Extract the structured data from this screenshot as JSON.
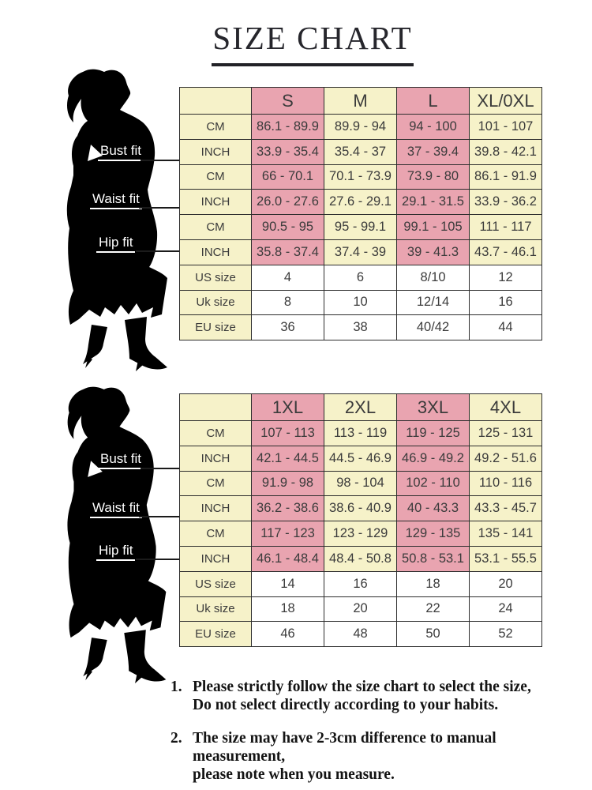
{
  "title": "SIZE CHART",
  "figures": {
    "bust_label": "Bust fit",
    "waist_label": "Waist fit",
    "hip_label": "Hip fit"
  },
  "colors": {
    "pink": "#e9a4b0",
    "cream": "#f6f2c9",
    "white": "#ffffff",
    "border": "#2d2d2d",
    "silhouette": "#000000"
  },
  "chart_data": [
    {
      "type": "table",
      "title": "Regular sizes (S - XL/0XL)",
      "columns": [
        "S",
        "M",
        "L",
        "XL/0XL"
      ],
      "rows": [
        {
          "label": "CM",
          "group": "bust",
          "fill": "size",
          "values": [
            "86.1 - 89.9",
            "89.9 - 94",
            "94 - 100",
            "101 - 107"
          ]
        },
        {
          "label": "INCH",
          "group": "bust",
          "fill": "size",
          "values": [
            "33.9 - 35.4",
            "35.4 - 37",
            "37 - 39.4",
            "39.8 - 42.1"
          ]
        },
        {
          "label": "CM",
          "group": "waist",
          "fill": "size",
          "values": [
            "66 - 70.1",
            "70.1 - 73.9",
            "73.9 - 80",
            "86.1 - 91.9"
          ]
        },
        {
          "label": "INCH",
          "group": "waist",
          "fill": "size",
          "values": [
            "26.0 - 27.6",
            "27.6 - 29.1",
            "29.1 - 31.5",
            "33.9 - 36.2"
          ]
        },
        {
          "label": "CM",
          "group": "hip",
          "fill": "size",
          "values": [
            "90.5 - 95",
            "95 - 99.1",
            "99.1 - 105",
            "111 - 117"
          ]
        },
        {
          "label": "INCH",
          "group": "hip",
          "fill": "size",
          "values": [
            "35.8 - 37.4",
            "37.4 - 39",
            "39 - 41.3",
            "43.7 - 46.1"
          ]
        },
        {
          "label": "US size",
          "group": "size",
          "fill": "white",
          "values": [
            "4",
            "6",
            "8/10",
            "12"
          ]
        },
        {
          "label": "Uk size",
          "group": "size",
          "fill": "white",
          "values": [
            "8",
            "10",
            "12/14",
            "16"
          ]
        },
        {
          "label": "EU size",
          "group": "size",
          "fill": "white",
          "values": [
            "36",
            "38",
            "40/42",
            "44"
          ]
        }
      ]
    },
    {
      "type": "table",
      "title": "Plus sizes (1XL - 4XL)",
      "columns": [
        "1XL",
        "2XL",
        "3XL",
        "4XL"
      ],
      "rows": [
        {
          "label": "CM",
          "group": "bust",
          "fill": "size",
          "values": [
            "107 - 113",
            "113 - 119",
            "119 - 125",
            "125 - 131"
          ]
        },
        {
          "label": "INCH",
          "group": "bust",
          "fill": "size",
          "values": [
            "42.1 - 44.5",
            "44.5 - 46.9",
            "46.9 - 49.2",
            "49.2 - 51.6"
          ]
        },
        {
          "label": "CM",
          "group": "waist",
          "fill": "size",
          "values": [
            "91.9 - 98",
            "98 - 104",
            "102 - 110",
            "110 - 116"
          ]
        },
        {
          "label": "INCH",
          "group": "waist",
          "fill": "size",
          "values": [
            "36.2 - 38.6",
            "38.6 - 40.9",
            "40 - 43.3",
            "43.3 - 45.7"
          ]
        },
        {
          "label": "CM",
          "group": "hip",
          "fill": "size",
          "values": [
            "117 - 123",
            "123 - 129",
            "129 - 135",
            "135 - 141"
          ]
        },
        {
          "label": "INCH",
          "group": "hip",
          "fill": "size",
          "values": [
            "46.1 - 48.4",
            "48.4 - 50.8",
            "50.8 - 53.1",
            "53.1 - 55.5"
          ]
        },
        {
          "label": "US size",
          "group": "size",
          "fill": "white",
          "values": [
            "14",
            "16",
            "18",
            "20"
          ]
        },
        {
          "label": "Uk size",
          "group": "size",
          "fill": "white",
          "values": [
            "18",
            "20",
            "22",
            "24"
          ]
        },
        {
          "label": "EU size",
          "group": "size",
          "fill": "white",
          "values": [
            "46",
            "48",
            "50",
            "52"
          ]
        }
      ]
    }
  ],
  "notes": [
    {
      "num": "1.",
      "line1": "Please strictly follow the size chart to select the size,",
      "line2": "Do not select directly according to your habits."
    },
    {
      "num": "2.",
      "line1": "The size may have 2-3cm difference  to manual measurement,",
      "line2": "please note when you measure."
    }
  ]
}
